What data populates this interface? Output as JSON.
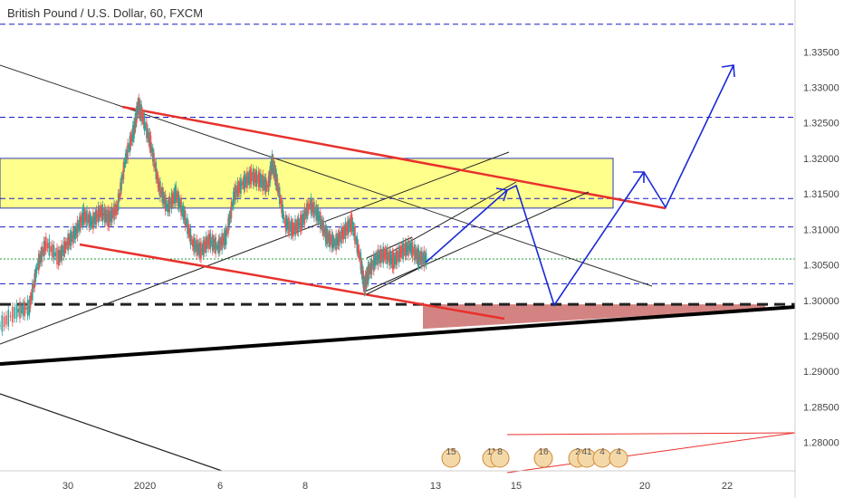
{
  "header": {
    "title": "British Pound / U.S. Dollar, 60, FXCM"
  },
  "colors": {
    "up": "#26a69a",
    "down": "#ef5350",
    "level_line": "#1a1acc",
    "zone_fill": "#ffff66",
    "support_fill": "#c0504d",
    "trend_red": "#e8312c",
    "projection": "#1a2ad6",
    "current_price": "#1e9e3c"
  },
  "chart_data": {
    "type": "line",
    "title": "British Pound / U.S. Dollar, 60, FXCM",
    "symbol": "GBPUSD",
    "timeframe": "60",
    "source": "FXCM",
    "ylim": [
      1.276,
      1.3395
    ],
    "y_ticks": [
      "1.28000",
      "1.28500",
      "1.29000",
      "1.29500",
      "1.30000",
      "1.30500",
      "1.31000",
      "1.31500",
      "1.32000",
      "1.32500",
      "1.33000",
      "1.33500"
    ],
    "x_ticks": [
      "30",
      "2020",
      "6",
      "8",
      "13",
      "15",
      "20",
      "22"
    ],
    "price_levels": [
      {
        "label": "1.33889",
        "value": 1.33889,
        "style": "blue-dashed"
      },
      {
        "label": "1.32579",
        "value": 1.32579,
        "style": "blue-dashed"
      },
      {
        "label": "1.31435",
        "value": 1.31435,
        "style": "blue-dashed"
      },
      {
        "label": "1.31035",
        "value": 1.31035,
        "style": "blue-dashed"
      },
      {
        "label": "1.30234",
        "value": 1.30234,
        "style": "blue-dashed"
      },
      {
        "label": "1.29944",
        "value": 1.29944,
        "style": "black-dashed"
      }
    ],
    "current_price": {
      "label": "1.30584",
      "value": 1.30584
    },
    "resistance_zone": {
      "top": 1.32,
      "bottom": 1.313
    },
    "support_zone": {
      "top": 1.29944,
      "bottom": 1.296
    },
    "price_path": [
      [
        0.0,
        1.2965
      ],
      [
        0.02,
        1.2985
      ],
      [
        0.035,
        1.299
      ],
      [
        0.045,
        1.305
      ],
      [
        0.055,
        1.308
      ],
      [
        0.07,
        1.306
      ],
      [
        0.08,
        1.308
      ],
      [
        0.09,
        1.3095
      ],
      [
        0.1,
        1.312
      ],
      [
        0.11,
        1.311
      ],
      [
        0.12,
        1.3125
      ],
      [
        0.13,
        1.3115
      ],
      [
        0.14,
        1.313
      ],
      [
        0.15,
        1.32
      ],
      [
        0.16,
        1.324
      ],
      [
        0.165,
        1.3275
      ],
      [
        0.17,
        1.326
      ],
      [
        0.18,
        1.322
      ],
      [
        0.19,
        1.316
      ],
      [
        0.2,
        1.313
      ],
      [
        0.21,
        1.315
      ],
      [
        0.22,
        1.312
      ],
      [
        0.23,
        1.308
      ],
      [
        0.24,
        1.307
      ],
      [
        0.25,
        1.3085
      ],
      [
        0.26,
        1.3075
      ],
      [
        0.27,
        1.309
      ],
      [
        0.28,
        1.315
      ],
      [
        0.29,
        1.3165
      ],
      [
        0.3,
        1.3175
      ],
      [
        0.31,
        1.317
      ],
      [
        0.32,
        1.316
      ],
      [
        0.325,
        1.3195
      ],
      [
        0.33,
        1.317
      ],
      [
        0.34,
        1.311
      ],
      [
        0.35,
        1.31
      ],
      [
        0.36,
        1.311
      ],
      [
        0.37,
        1.3135
      ],
      [
        0.38,
        1.312
      ],
      [
        0.39,
        1.309
      ],
      [
        0.4,
        1.308
      ],
      [
        0.41,
        1.3095
      ],
      [
        0.42,
        1.311
      ],
      [
        0.43,
        1.306
      ],
      [
        0.435,
        1.302
      ],
      [
        0.44,
        1.304
      ],
      [
        0.45,
        1.306
      ],
      [
        0.46,
        1.3065
      ],
      [
        0.47,
        1.3055
      ],
      [
        0.48,
        1.307
      ],
      [
        0.49,
        1.3075
      ],
      [
        0.5,
        1.306
      ],
      [
        0.51,
        1.3058
      ]
    ],
    "annotations": {
      "projection_path": "dip to support then rally toward 1.33889",
      "events_row": [
        "15",
        "11",
        "8",
        "16",
        "2",
        "41",
        "4",
        "4"
      ]
    }
  }
}
